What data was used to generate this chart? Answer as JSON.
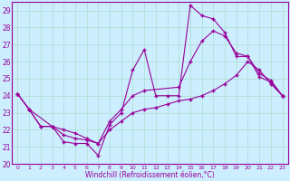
{
  "title": "",
  "xlabel": "Windchill (Refroidissement éolien,°C)",
  "bg_color": "#cceeff",
  "line_color": "#990099",
  "grid_color": "#aaddcc",
  "xlim": [
    -0.5,
    23.5
  ],
  "ylim": [
    20,
    29.5
  ],
  "yticks": [
    20,
    21,
    22,
    23,
    24,
    25,
    26,
    27,
    28,
    29
  ],
  "xticks": [
    0,
    1,
    2,
    3,
    4,
    5,
    6,
    7,
    8,
    9,
    10,
    11,
    12,
    13,
    14,
    15,
    16,
    17,
    18,
    19,
    20,
    21,
    22,
    23
  ],
  "line1_x": [
    0,
    1,
    2,
    3,
    4,
    5,
    6,
    7,
    8,
    9,
    10,
    11,
    12,
    13,
    14,
    15,
    16,
    17,
    18,
    19,
    20,
    21,
    22,
    23
  ],
  "line1_y": [
    24.1,
    23.2,
    22.2,
    22.2,
    21.3,
    21.2,
    21.2,
    20.5,
    22.3,
    23.0,
    25.5,
    26.7,
    24.0,
    24.0,
    24.0,
    29.3,
    28.7,
    28.5,
    27.7,
    26.3,
    26.3,
    25.1,
    24.8,
    24.0
  ],
  "line2_x": [
    0,
    1,
    3,
    4,
    5,
    6,
    7,
    8,
    9,
    10,
    11,
    14,
    15,
    16,
    17,
    18,
    19,
    20,
    21,
    22,
    23
  ],
  "line2_y": [
    24.1,
    23.2,
    22.2,
    22.0,
    21.8,
    21.5,
    21.2,
    22.5,
    23.2,
    24.0,
    24.3,
    24.5,
    26.0,
    27.2,
    27.8,
    27.5,
    26.5,
    26.3,
    25.3,
    24.9,
    24.0
  ],
  "line3_x": [
    0,
    1,
    2,
    3,
    4,
    5,
    6,
    7,
    8,
    9,
    10,
    11,
    12,
    13,
    14,
    15,
    16,
    17,
    18,
    19,
    20,
    21,
    22,
    23
  ],
  "line3_y": [
    24.1,
    23.2,
    22.2,
    22.2,
    21.7,
    21.5,
    21.4,
    21.2,
    22.0,
    22.5,
    23.0,
    23.2,
    23.3,
    23.5,
    23.7,
    23.8,
    24.0,
    24.3,
    24.7,
    25.2,
    26.0,
    25.5,
    24.7,
    24.0
  ]
}
